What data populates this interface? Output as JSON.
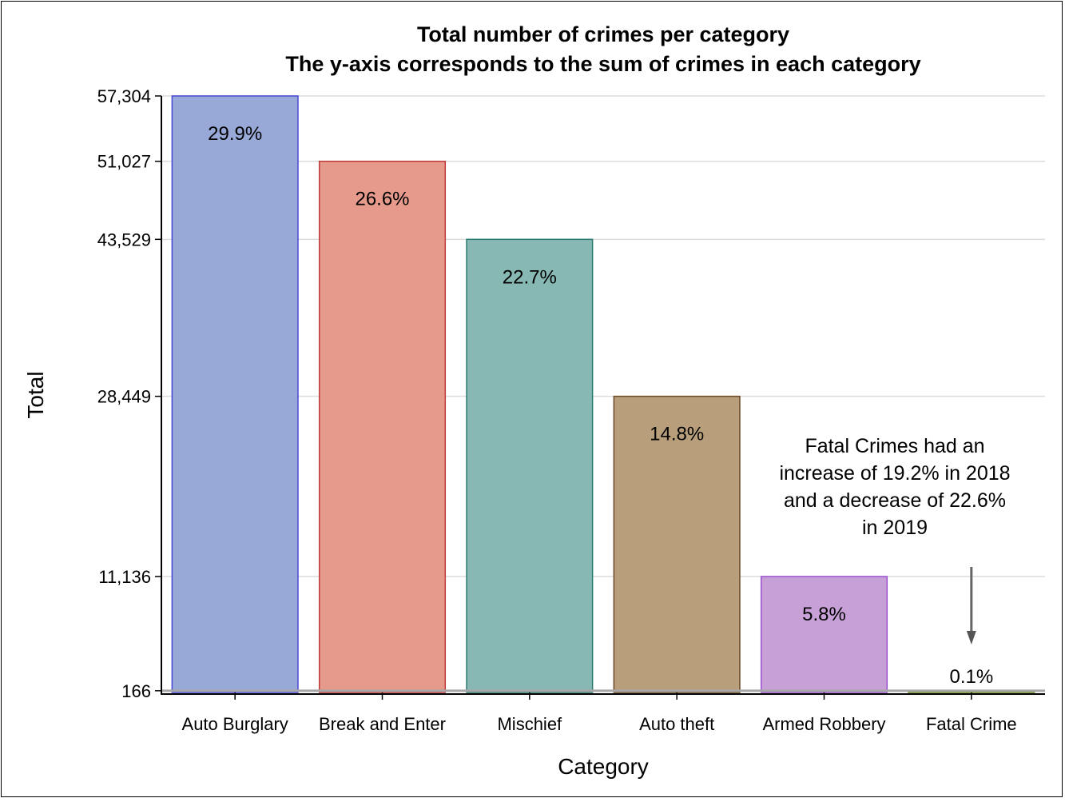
{
  "chart_data": {
    "type": "bar",
    "title": "Total number of crimes per category",
    "subtitle": "The y-axis corresponds to the sum of crimes in each category",
    "xlabel": "Category",
    "ylabel": "Total",
    "categories": [
      "Auto Burglary",
      "Break and Enter",
      "Mischief",
      "Auto theft",
      "Armed Robbery",
      "Fatal Crime"
    ],
    "values": [
      57304,
      51027,
      43529,
      28449,
      11136,
      166
    ],
    "percent_labels": [
      "29.9%",
      "26.6%",
      "22.7%",
      "14.8%",
      "5.8%",
      "0.1%"
    ],
    "colors": [
      "#98a9d7",
      "#e59a8c",
      "#87b8b3",
      "#b89e7b",
      "#c7a0d8",
      "#a7c35a"
    ],
    "edge_colors": [
      "#4848d6",
      "#c03a3a",
      "#2a7a72",
      "#6b4a24",
      "#9a50d0",
      "#6a8a20"
    ],
    "y_tick_labels": [
      "57,304",
      "51,027",
      "43,529",
      "28,449",
      "11,136",
      "166"
    ],
    "y_ticks": [
      57304,
      51027,
      43529,
      28449,
      11136,
      166
    ],
    "ylim": [
      0,
      57304
    ],
    "grid": true,
    "reference_line": 166,
    "annotation": {
      "lines": [
        "Fatal Crimes had an",
        "increase of 19.2% in 2018",
        "and a decrease of 22.6%",
        "in 2019"
      ],
      "arrow_target": "Fatal Crime"
    }
  }
}
